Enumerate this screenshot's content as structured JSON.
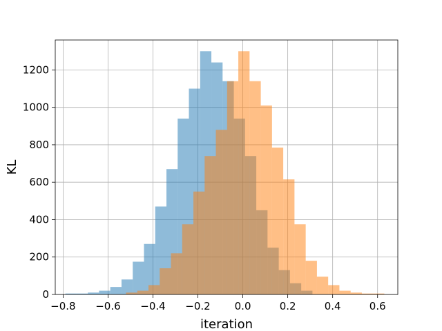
{
  "chart_data": {
    "type": "bar",
    "subtype": "histogram-overlay",
    "title": "",
    "xlabel": "iteration",
    "ylabel": "KL",
    "xlim": [
      -0.835,
      0.69
    ],
    "ylim": [
      0,
      1360
    ],
    "xticks": [
      -0.8,
      -0.6,
      -0.4,
      -0.2,
      0.0,
      0.2,
      0.4,
      0.6
    ],
    "xtick_labels": [
      "−0.8",
      "−0.6",
      "−0.4",
      "−0.2",
      "0.0",
      "0.2",
      "0.4",
      "0.6"
    ],
    "yticks": [
      0,
      200,
      400,
      600,
      800,
      1000,
      1200
    ],
    "ytick_labels": [
      "0",
      "200",
      "400",
      "600",
      "800",
      "1000",
      "1200"
    ],
    "grid": true,
    "series": [
      {
        "color": "#1f77b4",
        "alpha": 0.5,
        "bin_edges": [
          -0.79,
          -0.74,
          -0.69,
          -0.64,
          -0.59,
          -0.54,
          -0.49,
          -0.44,
          -0.39,
          -0.34,
          -0.29,
          -0.24,
          -0.19,
          -0.14,
          -0.09,
          -0.04,
          0.01,
          0.06,
          0.11,
          0.16,
          0.21,
          0.26,
          0.31
        ],
        "values": [
          5,
          5,
          10,
          20,
          40,
          80,
          175,
          270,
          470,
          670,
          940,
          1100,
          1300,
          1240,
          1140,
          940,
          740,
          450,
          250,
          130,
          60,
          20
        ]
      },
      {
        "color": "#ff7f0e",
        "alpha": 0.5,
        "bin_edges": [
          -0.52,
          -0.47,
          -0.42,
          -0.37,
          -0.32,
          -0.27,
          -0.22,
          -0.17,
          -0.12,
          -0.07,
          -0.02,
          0.03,
          0.08,
          0.13,
          0.18,
          0.23,
          0.28,
          0.33,
          0.38,
          0.43,
          0.48,
          0.53,
          0.58,
          0.63
        ],
        "values": [
          10,
          20,
          50,
          140,
          220,
          375,
          550,
          740,
          880,
          1140,
          1300,
          1140,
          1010,
          785,
          615,
          375,
          180,
          95,
          50,
          20,
          10,
          5,
          5
        ]
      }
    ]
  }
}
